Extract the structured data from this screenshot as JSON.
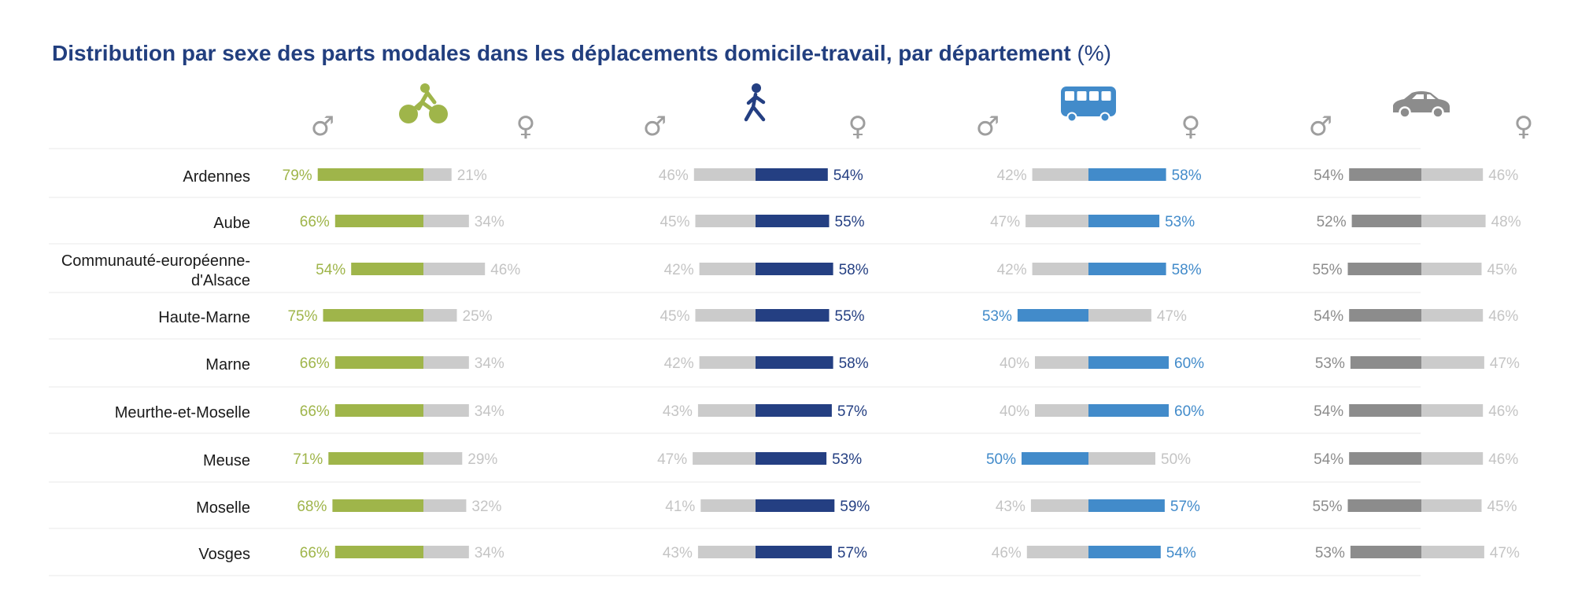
{
  "title": "Distribution par sexe des parts modales dans les déplacements domicile-travail, par département",
  "title_unit": "(%)",
  "colors": {
    "title": "#223f7f",
    "bike": "#9fb54a",
    "walk": "#243f82",
    "bus": "#428bca",
    "car": "#8c8c8c",
    "other_bar": "#cbcbcb",
    "other_text": "#c4c4c4",
    "symbol": "#9e9e9e",
    "row_line": "#eeeeee"
  },
  "chart_data": {
    "type": "bar",
    "categories": [
      "Ardennes",
      "Aube",
      "Communauté-européenne-d'Alsace",
      "Haute-Marne",
      "Marne",
      "Meurthe-et-Moselle",
      "Meuse",
      "Moselle",
      "Vosges"
    ],
    "category_lines": [
      [
        "Ardennes"
      ],
      [
        "Aube"
      ],
      [
        "Communauté-européenne-",
        "d'Alsace"
      ],
      [
        "Haute-Marne"
      ],
      [
        "Marne"
      ],
      [
        "Meurthe-et-Moselle"
      ],
      [
        "Meuse"
      ],
      [
        "Moselle"
      ],
      [
        "Vosges"
      ]
    ],
    "male_symbol": "♂",
    "female_symbol": "♀",
    "unit": "%",
    "groups": [
      {
        "icon": "bike-icon",
        "highlight": "male",
        "male": [
          79,
          66,
          54,
          75,
          66,
          66,
          71,
          68,
          66
        ],
        "female": [
          21,
          34,
          46,
          25,
          34,
          34,
          29,
          32,
          34
        ]
      },
      {
        "icon": "pedestrian-icon",
        "highlight": "female",
        "male": [
          46,
          45,
          42,
          45,
          42,
          43,
          47,
          41,
          43
        ],
        "female": [
          54,
          55,
          58,
          55,
          58,
          57,
          53,
          59,
          57
        ]
      },
      {
        "icon": "bus-icon",
        "highlight": "female",
        "highlight_male_rows": [
          3,
          6
        ],
        "male": [
          42,
          47,
          42,
          53,
          40,
          40,
          50,
          43,
          46
        ],
        "female": [
          58,
          53,
          58,
          47,
          60,
          60,
          50,
          57,
          54
        ]
      },
      {
        "icon": "car-icon",
        "highlight": "male",
        "male": [
          54,
          52,
          55,
          54,
          53,
          54,
          54,
          55,
          53
        ],
        "female": [
          46,
          48,
          45,
          46,
          47,
          46,
          46,
          45,
          47
        ]
      }
    ]
  }
}
